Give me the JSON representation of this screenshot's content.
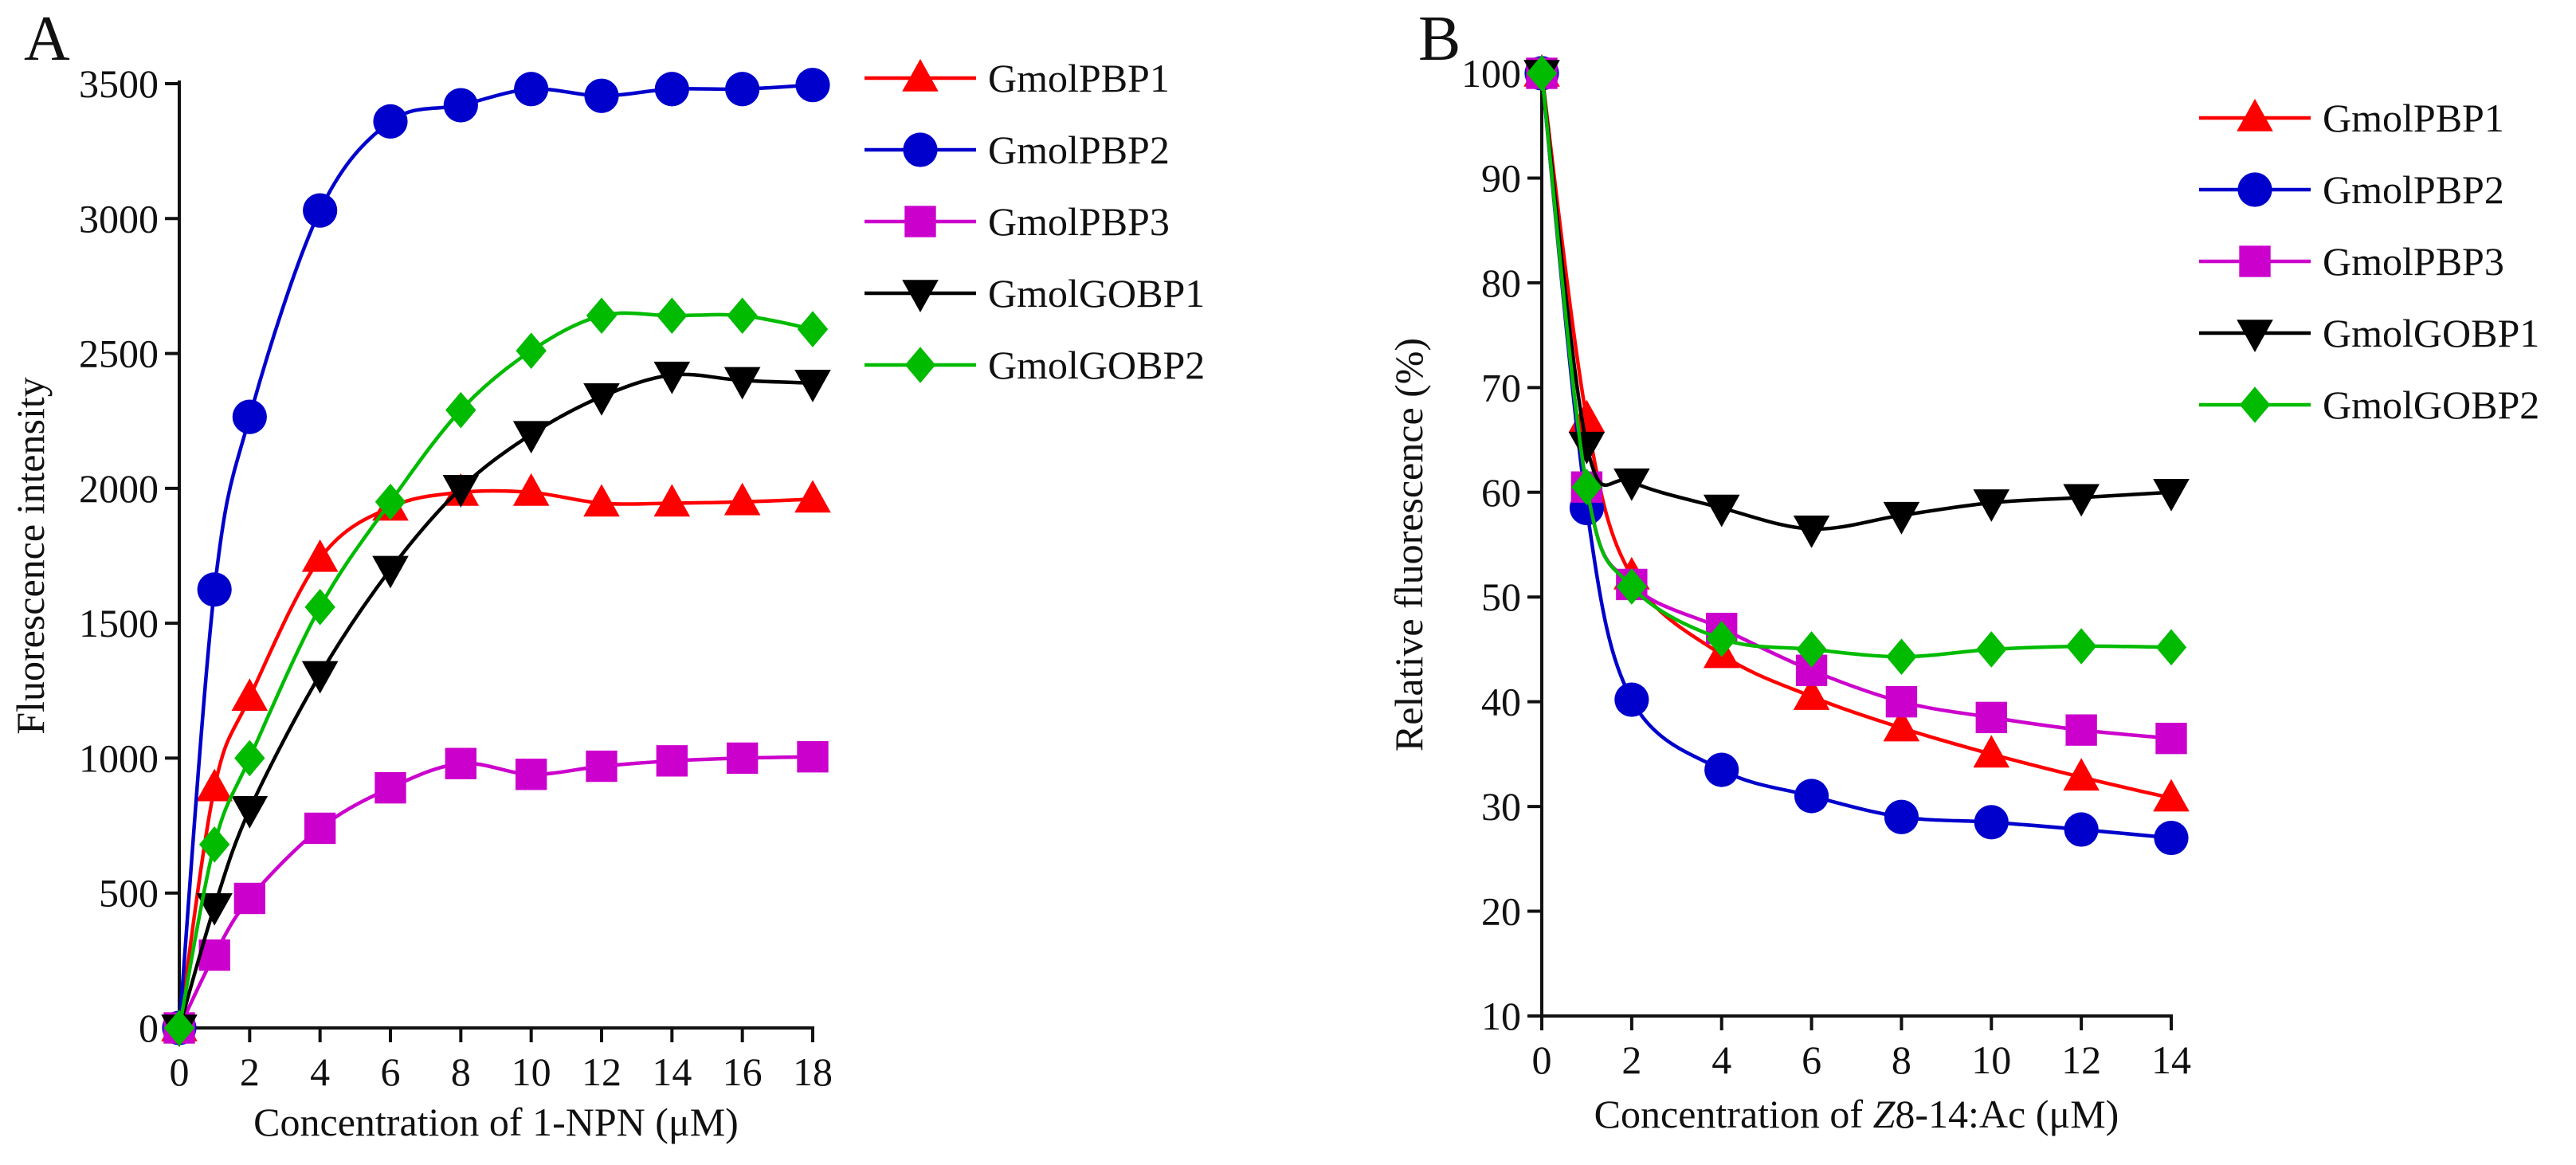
{
  "chart_data": [
    {
      "type": "line",
      "panel_label": "A",
      "title": "",
      "xlabel": "Concentration of 1-NPN (μM)",
      "ylabel": "Fluorescence intensity",
      "xlim": [
        0,
        18
      ],
      "ylim": [
        0,
        3500
      ],
      "xticks": [
        0,
        2,
        4,
        6,
        8,
        10,
        12,
        14,
        16,
        18
      ],
      "yticks": [
        0,
        500,
        1000,
        1500,
        2000,
        2500,
        3000,
        3500
      ],
      "legend_position": "top-right, outside plot",
      "series": [
        {
          "name": "GmolPBP1",
          "color": "#ff0000",
          "marker": "triangle-up",
          "x": [
            0,
            1,
            2,
            4,
            6,
            8,
            10,
            12,
            14,
            16,
            18
          ],
          "y": [
            0,
            890,
            1225,
            1740,
            1930,
            1985,
            1985,
            1945,
            1945,
            1950,
            1960
          ]
        },
        {
          "name": "GmolPBP2",
          "color": "#0000cc",
          "marker": "circle",
          "x": [
            0,
            1,
            2,
            4,
            6,
            8,
            10,
            12,
            14,
            16,
            18
          ],
          "y": [
            0,
            1625,
            2265,
            3030,
            3360,
            3420,
            3480,
            3455,
            3480,
            3480,
            3495
          ]
        },
        {
          "name": "GmolPBP3",
          "color": "#cc00cc",
          "marker": "square",
          "x": [
            0,
            1,
            2,
            4,
            6,
            8,
            10,
            12,
            14,
            16,
            18
          ],
          "y": [
            0,
            270,
            480,
            740,
            890,
            980,
            940,
            970,
            990,
            1000,
            1005
          ]
        },
        {
          "name": "GmolGOBP1",
          "color": "#000000",
          "marker": "triangle-down",
          "x": [
            0,
            1,
            2,
            4,
            6,
            8,
            10,
            12,
            14,
            16,
            18
          ],
          "y": [
            0,
            450,
            810,
            1310,
            1700,
            2000,
            2200,
            2340,
            2420,
            2400,
            2390
          ]
        },
        {
          "name": "GmolGOBP2",
          "color": "#00bb00",
          "marker": "diamond",
          "x": [
            0,
            1,
            2,
            4,
            6,
            8,
            10,
            12,
            14,
            16,
            18
          ],
          "y": [
            0,
            680,
            1000,
            1560,
            1950,
            2290,
            2510,
            2640,
            2640,
            2640,
            2590
          ]
        }
      ]
    },
    {
      "type": "line",
      "panel_label": "B",
      "title": "",
      "xlabel_parts": [
        "Concentration of ",
        "Z",
        "8-14:Ac (μM)"
      ],
      "ylabel": "Relative fluorescence (%)",
      "xlim": [
        0,
        14
      ],
      "ylim": [
        10,
        100
      ],
      "xticks": [
        0,
        2,
        4,
        6,
        8,
        10,
        12,
        14
      ],
      "yticks": [
        10,
        20,
        30,
        40,
        50,
        60,
        70,
        80,
        90,
        100
      ],
      "legend_position": "top-right, outside plot",
      "series": [
        {
          "name": "GmolPBP1",
          "color": "#ff0000",
          "marker": "triangle-up",
          "x": [
            0,
            1,
            2,
            4,
            6,
            8,
            10,
            12,
            14
          ],
          "y": [
            100,
            67,
            52,
            44.5,
            40.5,
            37.5,
            35,
            32.8,
            30.8
          ]
        },
        {
          "name": "GmolPBP2",
          "color": "#0000cc",
          "marker": "circle",
          "x": [
            0,
            1,
            2,
            4,
            6,
            8,
            10,
            12,
            14
          ],
          "y": [
            100,
            58.5,
            40.2,
            33.5,
            31,
            29,
            28.5,
            27.8,
            27
          ]
        },
        {
          "name": "GmolPBP3",
          "color": "#cc00cc",
          "marker": "square",
          "x": [
            0,
            1,
            2,
            4,
            6,
            8,
            10,
            12,
            14
          ],
          "y": [
            100,
            60.5,
            51.2,
            47,
            43,
            40,
            38.5,
            37.3,
            36.5
          ]
        },
        {
          "name": "GmolGOBP1",
          "color": "#000000",
          "marker": "triangle-down",
          "x": [
            0,
            1,
            2,
            4,
            6,
            8,
            10,
            12,
            14
          ],
          "y": [
            100,
            64.5,
            61,
            58.5,
            56.5,
            57.8,
            59,
            59.5,
            60
          ]
        },
        {
          "name": "GmolGOBP2",
          "color": "#00bb00",
          "marker": "diamond",
          "x": [
            0,
            1,
            2,
            4,
            6,
            8,
            10,
            12,
            14
          ],
          "y": [
            100,
            60.5,
            51,
            46,
            45,
            44.3,
            45,
            45.3,
            45.2
          ]
        }
      ]
    }
  ]
}
